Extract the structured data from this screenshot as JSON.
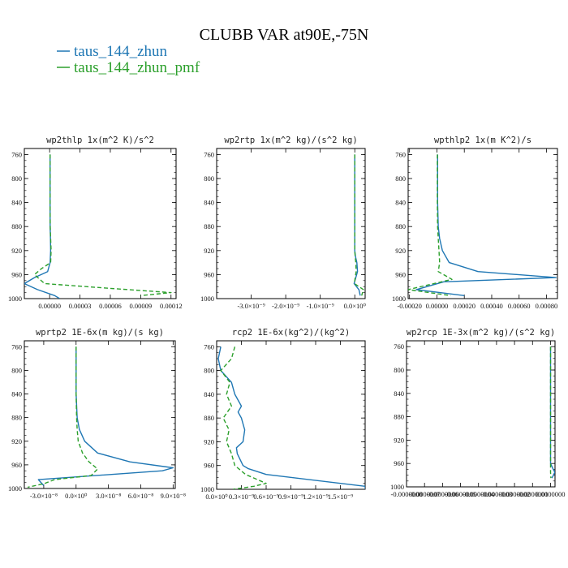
{
  "figure": {
    "title": "CLUBB VAR at90E,-75N",
    "legend": [
      {
        "label": "taus_144_zhun",
        "color": "#1f77b4",
        "dash": "solid"
      },
      {
        "label": "taus_144_zhun_pmf",
        "color": "#2ca02c",
        "dash": "dashed"
      }
    ]
  },
  "chart_data": [
    {
      "type": "line",
      "title": "wp2thlp  1x(m^2 K)/s^2",
      "ylim": [
        1000,
        750
      ],
      "yticks": [
        760,
        800,
        840,
        880,
        920,
        960,
        1000
      ],
      "ytick_labels": [
        "760",
        "800",
        "840",
        "880",
        "920",
        "960",
        "1000"
      ],
      "xlim": [
        -2.5e-05,
        0.000125
      ],
      "xticks": [
        0,
        3e-05,
        6e-05,
        9e-05,
        0.00012
      ],
      "xtick_labels": [
        "0.00000",
        "0.00003",
        "0.00006",
        "0.00009",
        "0.00012"
      ],
      "grid": false,
      "series": [
        {
          "name": "taus_144_zhun",
          "color": "#1f77b4",
          "dash": "solid",
          "x": [
            4e-07,
            4e-07,
            4e-07,
            5e-07,
            8e-07,
            1e-06,
            5e-07,
            -2e-06,
            -1.5e-05,
            -2.5e-05,
            -1.2e-05,
            5e-06,
            1e-05
          ],
          "y": [
            760,
            800,
            840,
            880,
            900,
            920,
            940,
            955,
            965,
            975,
            985,
            995,
            1000
          ]
        },
        {
          "name": "taus_144_zhun_pmf",
          "color": "#2ca02c",
          "dash": "dashed",
          "x": [
            4e-07,
            4e-07,
            4e-07,
            6e-07,
            1e-06,
            1.5e-06,
            1e-06,
            -8e-06,
            -1.5e-05,
            -5e-06,
            6e-05,
            0.00012,
            9e-05
          ],
          "y": [
            760,
            800,
            840,
            880,
            900,
            920,
            940,
            950,
            960,
            975,
            983,
            990,
            995
          ]
        }
      ]
    },
    {
      "type": "line",
      "title": "wp2rtp  1x(m^2 kg)/(s^2 kg)",
      "ylim": [
        1000,
        750
      ],
      "yticks": [
        760,
        800,
        840,
        880,
        920,
        960,
        1000
      ],
      "ytick_labels": [
        "760",
        "800",
        "840",
        "880",
        "920",
        "960",
        "1000"
      ],
      "xlim": [
        -4e-09,
        3e-10
      ],
      "xticks": [
        -3e-09,
        -2e-09,
        -1e-09,
        0
      ],
      "xtick_labels": [
        "-3.0×10⁻⁹",
        "-2.0×10⁻⁹",
        "-1.0×10⁻⁹",
        "0.0×10⁰"
      ],
      "grid": false,
      "series": [
        {
          "name": "taus_144_zhun",
          "color": "#1f77b4",
          "dash": "solid",
          "x": [
            0,
            0,
            0,
            0,
            0,
            2e-11,
            6e-11,
            8e-11,
            3e-11,
            -2e-11,
            1.2e-10,
            1.6e-10
          ],
          "y": [
            760,
            800,
            840,
            880,
            920,
            930,
            940,
            955,
            965,
            975,
            985,
            995
          ]
        },
        {
          "name": "taus_144_zhun_pmf",
          "color": "#2ca02c",
          "dash": "dashed",
          "x": [
            0,
            0,
            0,
            0,
            0,
            1e-11,
            3e-11,
            4e-11,
            1e-11,
            -1e-11,
            2.5e-10,
            2e-10
          ],
          "y": [
            760,
            800,
            840,
            880,
            920,
            930,
            940,
            955,
            965,
            975,
            985,
            995
          ]
        }
      ]
    },
    {
      "type": "line",
      "title": "wpthlp2  1x(m K^2)/s",
      "ylim": [
        1000,
        750
      ],
      "yticks": [
        760,
        800,
        840,
        880,
        920,
        960,
        1000
      ],
      "ytick_labels": [
        "760",
        "800",
        "840",
        "880",
        "920",
        "960",
        "1000"
      ],
      "xlim": [
        -0.00021,
        0.00088
      ],
      "xticks": [
        -0.0002,
        0,
        0.0002,
        0.0004,
        0.0006,
        0.0008
      ],
      "xtick_labels": [
        "-0.00020",
        "0.00000",
        "0.00020",
        "0.00040",
        "0.00060",
        "0.00080"
      ],
      "grid": false,
      "series": [
        {
          "name": "taus_144_zhun",
          "color": "#1f77b4",
          "dash": "solid",
          "x": [
            5e-06,
            5e-06,
            5e-06,
            1e-05,
            2e-05,
            4e-05,
            9e-05,
            0.0003,
            0.00087,
            5e-05,
            -0.00015,
            0.0002
          ],
          "y": [
            760,
            800,
            840,
            880,
            900,
            920,
            940,
            955,
            965,
            972,
            985,
            995
          ]
        },
        {
          "name": "taus_144_zhun_pmf",
          "color": "#2ca02c",
          "dash": "dashed",
          "x": [
            3e-06,
            3e-06,
            3e-06,
            5e-06,
            1e-05,
            1.5e-05,
            2e-05,
            1e-05,
            0.00011,
            -0.00021,
            0.0001
          ],
          "y": [
            760,
            800,
            840,
            880,
            900,
            920,
            940,
            955,
            968,
            985,
            995
          ]
        }
      ]
    },
    {
      "type": "line",
      "title": "wprtp2  1E-6x(m kg)/(s kg)",
      "ylim": [
        1000,
        750
      ],
      "yticks": [
        760,
        800,
        840,
        880,
        920,
        960,
        1000
      ],
      "ytick_labels": [
        "760",
        "800",
        "840",
        "880",
        "920",
        "960",
        "1000"
      ],
      "xlim": [
        -4.8e-08,
        9.2e-08
      ],
      "xticks": [
        -3e-08,
        0,
        3e-08,
        6e-08,
        9e-08
      ],
      "xtick_labels": [
        "-3.0×10⁻⁸",
        "0.0×10⁰",
        "3.0×10⁻⁸",
        "6.0×10⁻⁸",
        "9.0×10⁻⁸"
      ],
      "grid": false,
      "series": [
        {
          "name": "taus_144_zhun",
          "color": "#1f77b4",
          "dash": "solid",
          "x": [
            0,
            0,
            0,
            1e-09,
            3e-09,
            8e-09,
            2e-08,
            5e-08,
            9e-08,
            8e-08,
            -3.5e-08,
            -3e-08
          ],
          "y": [
            760,
            800,
            840,
            880,
            900,
            920,
            940,
            955,
            965,
            970,
            985,
            995
          ]
        },
        {
          "name": "taus_144_zhun_pmf",
          "color": "#2ca02c",
          "dash": "dashed",
          "x": [
            0,
            0,
            0,
            5e-10,
            1e-09,
            2e-09,
            6e-09,
            1.2e-08,
            2e-08,
            1.4e-08,
            -2e-08,
            -3e-08,
            -4.5e-08
          ],
          "y": [
            760,
            800,
            840,
            880,
            900,
            920,
            940,
            955,
            967,
            978,
            985,
            992,
            998
          ]
        }
      ]
    },
    {
      "type": "line",
      "title": "rcp2  1E-6x(kg^2)/(kg^2)",
      "ylim": [
        1000,
        750
      ],
      "yticks": [
        760,
        800,
        840,
        880,
        920,
        960,
        1000
      ],
      "ytick_labels": [
        "760",
        "800",
        "840",
        "880",
        "920",
        "960",
        "1000"
      ],
      "xlim": [
        0,
        1.8e-12
      ],
      "xticks": [
        0,
        3e-13,
        6e-13,
        9e-13,
        1.2e-12,
        1.5e-12
      ],
      "xtick_labels": [
        "0.0×10⁰",
        "0.3×10⁻⁹",
        "0.6×10⁻⁹",
        "0.9×10⁻⁹",
        "1.2×10⁻⁹",
        "1.5×10⁻⁹"
      ],
      "grid": false,
      "series": [
        {
          "name": "taus_144_zhun",
          "color": "#1f77b4",
          "dash": "solid",
          "x": [
            5e-14,
            2e-14,
            5e-14,
            1.8e-13,
            2.2e-13,
            3e-13,
            2.6e-13,
            3e-13,
            3.4e-13,
            3.2e-13,
            2.4e-13,
            2.5e-13,
            3.2e-13,
            3.8e-13,
            6e-13,
            1.8e-12,
            1.8e-12
          ],
          "y": [
            760,
            780,
            800,
            820,
            840,
            860,
            870,
            880,
            900,
            920,
            930,
            940,
            960,
            965,
            975,
            995,
            1000
          ]
        },
        {
          "name": "taus_144_zhun_pmf",
          "color": "#2ca02c",
          "dash": "dashed",
          "x": [
            2.2e-13,
            1.8e-13,
            5e-14,
            1.6e-13,
            1.2e-13,
            1.8e-13,
            8e-14,
            1.5e-13,
            1.2e-13,
            1.8e-13,
            2.2e-13,
            3.5e-13,
            6e-13,
            4.5e-13,
            2e-13
          ],
          "y": [
            760,
            780,
            800,
            820,
            840,
            860,
            880,
            900,
            920,
            940,
            960,
            975,
            990,
            995,
            1000
          ]
        }
      ]
    },
    {
      "type": "line",
      "title": "wp2rcp  1E-3x(m^2 kg)/(s^2 kg)",
      "ylim": [
        1000,
        750
      ],
      "yticks": [
        760,
        800,
        840,
        880,
        920,
        960,
        1000
      ],
      "ytick_labels": [
        "760",
        "800",
        "840",
        "880",
        "920",
        "960",
        "1000"
      ],
      "xlim": [
        -8e-07,
        2.5e-08
      ],
      "xticks": [
        -8e-07,
        -7e-07,
        -6e-07,
        -5e-07,
        -4e-07,
        -3e-07,
        -2e-07,
        -1e-07,
        0
      ],
      "xtick_labels": [
        "-0.0000008",
        "-0.0000007",
        "-0.0000006",
        "-0.0000005",
        "-0.0000004",
        "-0.0000003",
        "-0.0000002",
        "-0.0000001",
        "0.0000000"
      ],
      "grid": false,
      "series": [
        {
          "name": "taus_144_zhun",
          "color": "#1f77b4",
          "dash": "solid",
          "x": [
            0,
            0,
            0,
            0,
            0,
            0,
            0,
            1.5e-08,
            2.4e-08,
            8e-09
          ],
          "y": [
            760,
            800,
            840,
            880,
            920,
            950,
            960,
            970,
            975,
            985
          ]
        },
        {
          "name": "taus_144_zhun_pmf",
          "color": "#2ca02c",
          "dash": "dashed",
          "x": [
            0,
            0,
            0,
            0,
            0,
            0,
            0,
            0,
            2e-09
          ],
          "y": [
            760,
            800,
            840,
            880,
            920,
            950,
            960,
            975,
            985
          ]
        }
      ]
    }
  ]
}
